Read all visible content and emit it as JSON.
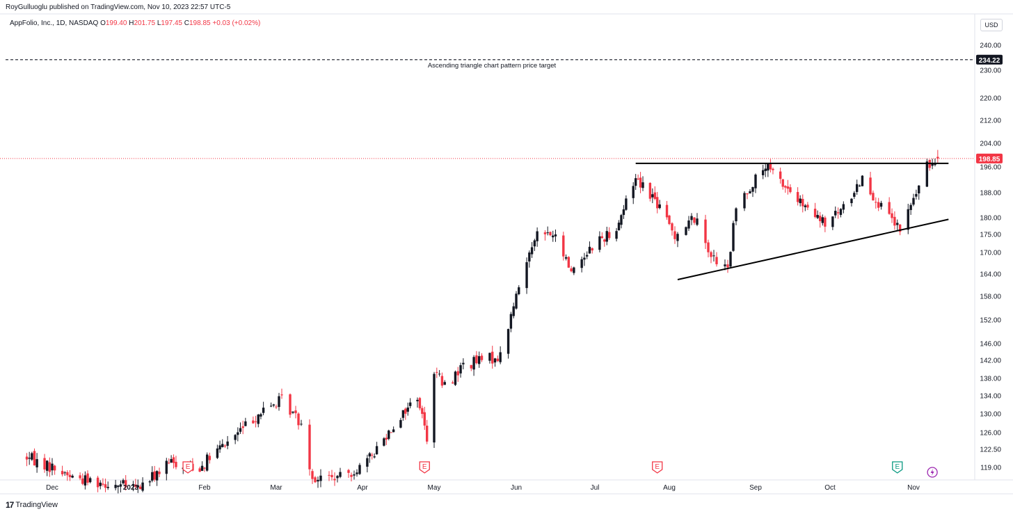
{
  "header": {
    "published": "RoyGulluoglu published on TradingView.com, Nov 10, 2023 22:57 UTC-5"
  },
  "legend": {
    "symbol": "AppFolio, Inc., 1D, NASDAQ",
    "o_label": "O",
    "o_value": "199.40",
    "h_label": "H",
    "h_value": "201.75",
    "l_label": "L",
    "l_value": "197.45",
    "c_label": "C",
    "c_value": "198.85",
    "change": "+0.03 (+0.02%)"
  },
  "currency_button": "USD",
  "footer": {
    "logo_text": "17",
    "brand": "TradingView"
  },
  "colors": {
    "up": "#131722",
    "down": "#f23645",
    "last_price": "#f23645",
    "target": "#131722",
    "earnings": "#f23645",
    "earnings_future": "#089981",
    "dividend": "#9c27b0"
  },
  "chart_data": {
    "type": "candlestick",
    "y_axis_labels": [
      "240.00",
      "234.22",
      "230.00",
      "220.00",
      "212.00",
      "204.00",
      "198.85",
      "196.00",
      "188.00",
      "180.00",
      "175.00",
      "170.00",
      "164.00",
      "158.00",
      "152.00",
      "146.00",
      "142.00",
      "138.00",
      "134.00",
      "130.00",
      "126.00",
      "122.50",
      "119.00"
    ],
    "y_ticks": [
      240,
      230,
      220,
      212,
      204,
      196,
      188,
      180,
      175,
      170,
      164,
      158,
      152,
      146,
      142,
      138,
      134,
      130,
      126,
      122.5,
      119
    ],
    "x_axis_labels": [
      "Dec",
      "2023",
      "Feb",
      "Mar",
      "Apr",
      "May",
      "Jun",
      "Jul",
      "Aug",
      "Sep",
      "Oct",
      "Nov"
    ],
    "x_axis_bold": "2023",
    "last_price": 198.85,
    "last_price_label": "198.85",
    "target_price": 234.22,
    "target_label": "234.22",
    "annotation": "Ascending triangle chart pattern price target",
    "resistance_line": {
      "from": [
        "2023-07-18",
        197.2
      ],
      "to": [
        "2023-11-14",
        197.2
      ]
    },
    "support_line": {
      "from": [
        "2023-08-04",
        162.5
      ],
      "to": [
        "2023-11-14",
        179.5
      ]
    },
    "earnings_markers": [
      {
        "label": "E",
        "date": "2023-01-25",
        "kind": "past"
      },
      {
        "label": "E",
        "date": "2023-04-27",
        "kind": "past"
      },
      {
        "label": "E",
        "date": "2023-07-27",
        "kind": "past"
      },
      {
        "label": "E",
        "date": "2023-10-26",
        "kind": "future"
      }
    ],
    "dividend_marker": {
      "date": "2023-11-08"
    },
    "anchors": [
      [
        "2022-11-21",
        121
      ],
      [
        "2022-12-01",
        119
      ],
      [
        "2022-12-10",
        117
      ],
      [
        "2023-01-04",
        115
      ],
      [
        "2023-01-18",
        120
      ],
      [
        "2023-01-30",
        119
      ],
      [
        "2023-02-10",
        124
      ],
      [
        "2023-02-22",
        130
      ],
      [
        "2023-03-03",
        133
      ],
      [
        "2023-03-10",
        128
      ],
      [
        "2023-03-14",
        117
      ],
      [
        "2023-03-24",
        117
      ],
      [
        "2023-04-03",
        120
      ],
      [
        "2023-04-13",
        127
      ],
      [
        "2023-04-24",
        134
      ],
      [
        "2023-04-28",
        125
      ],
      [
        "2023-05-01",
        140
      ],
      [
        "2023-05-05",
        136
      ],
      [
        "2023-05-12",
        141
      ],
      [
        "2023-05-26",
        143
      ],
      [
        "2023-06-01",
        158
      ],
      [
        "2023-06-08",
        175
      ],
      [
        "2023-06-15",
        175
      ],
      [
        "2023-06-22",
        165
      ],
      [
        "2023-06-30",
        172
      ],
      [
        "2023-07-10",
        177
      ],
      [
        "2023-07-18",
        193
      ],
      [
        "2023-07-25",
        187
      ],
      [
        "2023-08-03",
        175
      ],
      [
        "2023-08-10",
        180
      ],
      [
        "2023-08-17",
        168
      ],
      [
        "2023-08-22",
        165
      ],
      [
        "2023-08-25",
        183
      ],
      [
        "2023-08-30",
        190
      ],
      [
        "2023-09-05",
        196
      ],
      [
        "2023-09-13",
        190
      ],
      [
        "2023-09-22",
        182
      ],
      [
        "2023-09-29",
        178
      ],
      [
        "2023-10-06",
        183
      ],
      [
        "2023-10-13",
        193
      ],
      [
        "2023-10-20",
        183
      ],
      [
        "2023-10-27",
        176
      ],
      [
        "2023-11-01",
        186
      ],
      [
        "2023-11-06",
        196
      ],
      [
        "2023-11-10",
        198.85
      ]
    ]
  }
}
